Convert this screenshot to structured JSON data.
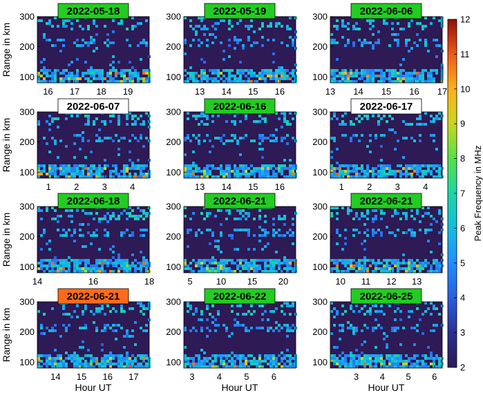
{
  "chart_data": {
    "type": "heatmap",
    "ylabel": "Range in km",
    "xlabel": "Hour UT",
    "y_ticks": [
      100,
      200,
      300
    ],
    "ylim": [
      80,
      300
    ],
    "colorbar": {
      "label": "Peak Frequency in MHz",
      "range": [
        2,
        12
      ],
      "ticks": [
        2,
        3,
        4,
        5,
        6,
        7,
        8,
        9,
        10,
        11,
        12
      ],
      "colormap": "jet-like (dark blue low to dark red high)"
    },
    "panels": [
      {
        "date": "2022-05-18",
        "badge_color": "#22cc22",
        "x_ticks": [
          16,
          17,
          18,
          19
        ],
        "xlim": [
          15.6,
          19.8
        ]
      },
      {
        "date": "2022-05-19",
        "badge_color": "#22cc22",
        "x_ticks": [
          13,
          14,
          15,
          16
        ],
        "xlim": [
          12.4,
          16.6
        ]
      },
      {
        "date": "2022-06-06",
        "badge_color": "#22cc22",
        "x_ticks": [
          13,
          14,
          15,
          16,
          17
        ],
        "xlim": [
          13.0,
          17.0
        ]
      },
      {
        "date": "2022-06-07",
        "badge_color": "#ffffff",
        "x_ticks": [
          1,
          2,
          3,
          4
        ],
        "xlim": [
          0.6,
          4.6
        ]
      },
      {
        "date": "2022-06-16",
        "badge_color": "#22cc22",
        "x_ticks": [
          13,
          14,
          15,
          16
        ],
        "xlim": [
          12.4,
          16.6
        ]
      },
      {
        "date": "2022-06-17",
        "badge_color": "#ffffff",
        "x_ticks": [
          1,
          2,
          3,
          4
        ],
        "xlim": [
          0.6,
          4.6
        ]
      },
      {
        "date": "2022-06-18",
        "badge_color": "#22cc22",
        "x_ticks": [
          14,
          16,
          18
        ],
        "xlim": [
          14.0,
          18.0
        ]
      },
      {
        "date": "2022-06-21",
        "badge_color": "#22cc22",
        "x_ticks": [
          5,
          10,
          15,
          20
        ],
        "xlim": [
          4.0,
          22.0
        ]
      },
      {
        "date": "2022-06-21",
        "badge_color": "#22cc22",
        "x_ticks": [
          10,
          11,
          12,
          13
        ],
        "xlim": [
          9.6,
          14.0
        ]
      },
      {
        "date": "2022-06-21",
        "badge_color": "#ff6a1a",
        "x_ticks": [
          14,
          15,
          16,
          17
        ],
        "xlim": [
          13.3,
          17.6
        ]
      },
      {
        "date": "2022-06-22",
        "badge_color": "#22cc22",
        "x_ticks": [
          3,
          4,
          5,
          6
        ],
        "xlim": [
          2.7,
          6.8
        ]
      },
      {
        "date": "2022-06-25",
        "badge_color": "#22cc22",
        "x_ticks": [
          3,
          4,
          5,
          6
        ],
        "xlim": [
          2.0,
          6.3
        ]
      }
    ]
  }
}
